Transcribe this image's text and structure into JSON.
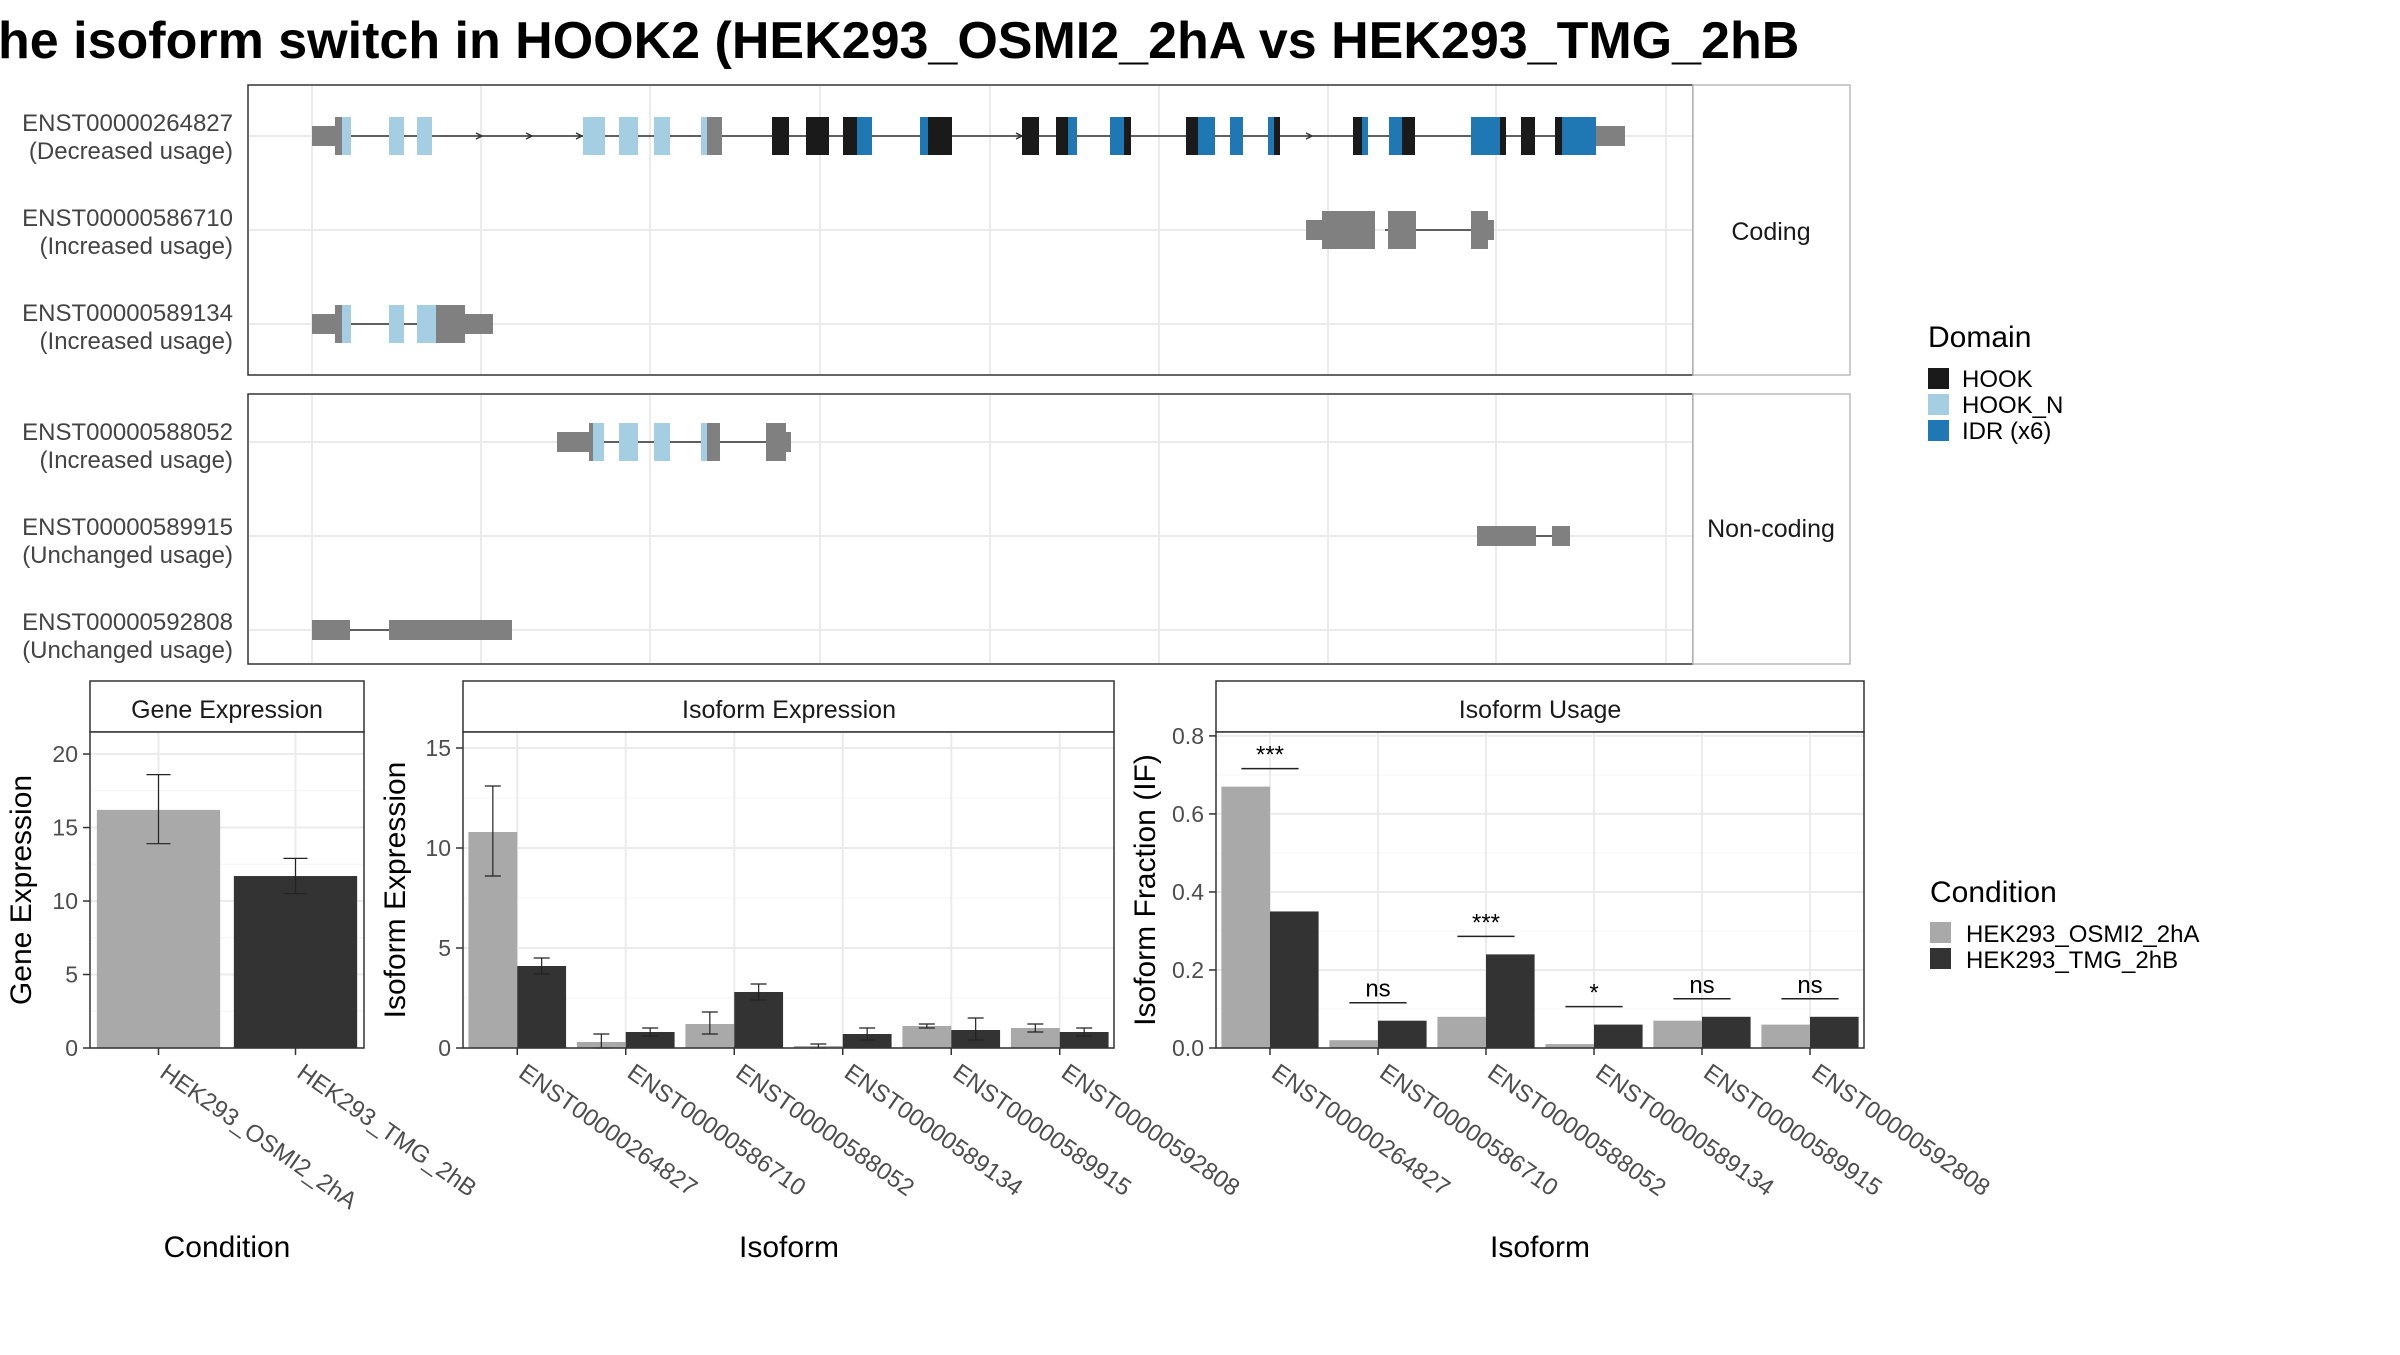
{
  "title": "he isoform switch in HOOK2 (HEK293_OSMI2_2hA vs HEK293_TMG_2hB",
  "structure_panel": {
    "groups": [
      {
        "label": "Coding",
        "transcripts": [
          {
            "id": "ENST00000264827",
            "usage": "(Decreased usage)"
          },
          {
            "id": "ENST00000586710",
            "usage": "(Increased usage)"
          },
          {
            "id": "ENST00000589134",
            "usage": "(Increased usage)"
          }
        ]
      },
      {
        "label": "Non-coding",
        "transcripts": [
          {
            "id": "ENST00000588052",
            "usage": "(Increased usage)"
          },
          {
            "id": "ENST00000589915",
            "usage": "(Unchanged usage)"
          },
          {
            "id": "ENST00000592808",
            "usage": "(Unchanged usage)"
          }
        ]
      }
    ]
  },
  "domain_legend": {
    "title": "Domain",
    "items": [
      {
        "label": "HOOK",
        "color": "#1a1a1a"
      },
      {
        "label": "HOOK_N",
        "color": "#a6cee3"
      },
      {
        "label": "IDR (x6)",
        "color": "#1f78b4"
      }
    ]
  },
  "condition_legend": {
    "title": "Condition",
    "items": [
      {
        "label": "HEK293_OSMI2_2hA",
        "color": "#a9a9a9"
      },
      {
        "label": "HEK293_TMG_2hB",
        "color": "#333333"
      }
    ]
  },
  "chart_data": [
    {
      "type": "bar",
      "title": "Gene Expression",
      "xlabel": "Condition",
      "ylabel": "Gene Expression",
      "categories": [
        "HEK293_OSMI2_2hA",
        "HEK293_TMG_2hB"
      ],
      "values": [
        16.2,
        11.7
      ],
      "error_low": [
        13.9,
        10.5
      ],
      "error_high": [
        18.6,
        12.9
      ],
      "ylim": [
        0,
        21.5
      ],
      "yticks": [
        0,
        5,
        10,
        15,
        20
      ]
    },
    {
      "type": "bar",
      "title": "Isoform Expression",
      "xlabel": "Isoform",
      "ylabel": "Isoform Expression",
      "categories": [
        "ENST00000264827",
        "ENST00000586710",
        "ENST00000588052",
        "ENST00000589134",
        "ENST00000589915",
        "ENST00000592808"
      ],
      "series": [
        {
          "name": "HEK293_OSMI2_2hA",
          "values": [
            10.8,
            0.3,
            1.2,
            0.1,
            1.1,
            1.0
          ],
          "error_low": [
            8.6,
            0.0,
            0.7,
            0.0,
            1.0,
            0.8
          ],
          "error_high": [
            13.1,
            0.7,
            1.8,
            0.2,
            1.2,
            1.2
          ]
        },
        {
          "name": "HEK293_TMG_2hB",
          "values": [
            4.1,
            0.8,
            2.8,
            0.7,
            0.9,
            0.8
          ],
          "error_low": [
            3.7,
            0.6,
            2.4,
            0.4,
            0.4,
            0.6
          ],
          "error_high": [
            4.5,
            1.0,
            3.2,
            1.0,
            1.5,
            1.0
          ]
        }
      ],
      "ylim": [
        0,
        15.8
      ],
      "yticks": [
        0,
        5,
        10,
        15
      ]
    },
    {
      "type": "bar",
      "title": "Isoform Usage",
      "xlabel": "Isoform",
      "ylabel": "Isoform Fraction (IF)",
      "categories": [
        "ENST00000264827",
        "ENST00000586710",
        "ENST00000588052",
        "ENST00000589134",
        "ENST00000589915",
        "ENST00000592808"
      ],
      "series": [
        {
          "name": "HEK293_OSMI2_2hA",
          "values": [
            0.67,
            0.02,
            0.08,
            0.01,
            0.07,
            0.06
          ]
        },
        {
          "name": "HEK293_TMG_2hB",
          "values": [
            0.35,
            0.07,
            0.24,
            0.06,
            0.08,
            0.08
          ]
        }
      ],
      "significance": [
        "***",
        "ns",
        "***",
        "*",
        "ns",
        "ns"
      ],
      "ylim": [
        0,
        0.81
      ],
      "yticks": [
        0.0,
        0.2,
        0.4,
        0.6,
        0.8
      ]
    }
  ]
}
